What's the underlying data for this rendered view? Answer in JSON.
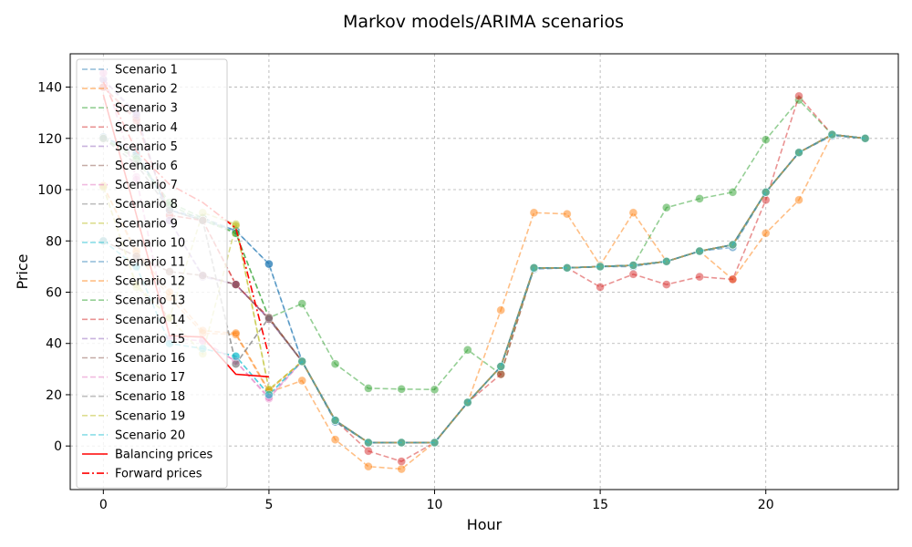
{
  "chart_data": {
    "type": "line",
    "title": "Markov models/ARIMA scenarios",
    "xlabel": "Hour",
    "ylabel": "Price",
    "xlim": [
      -1,
      24
    ],
    "ylim": [
      -17,
      153
    ],
    "xticks": [
      0,
      5,
      10,
      15,
      20
    ],
    "yticks": [
      0,
      20,
      40,
      60,
      80,
      100,
      120,
      140
    ],
    "grid": true,
    "legend_position": "upper-left",
    "series": [
      {
        "name": "Scenario 1",
        "color": "#1f77b4",
        "style": "dashed",
        "markers": true,
        "x": [
          0,
          1,
          2,
          3,
          4,
          5,
          6,
          7,
          8,
          9,
          10,
          11,
          12,
          13,
          14,
          15,
          16,
          17,
          18,
          19,
          20,
          21,
          22,
          23
        ],
        "y": [
          120.5,
          115,
          92,
          89,
          84,
          71,
          33,
          9.5,
          1.3,
          1.3,
          1.3,
          17,
          31,
          69,
          69.5,
          70,
          70,
          72,
          76,
          77.5,
          99,
          114.5,
          121,
          120
        ]
      },
      {
        "name": "Scenario 2",
        "color": "#ff7f0e",
        "style": "dashed",
        "markers": true,
        "x": [
          0,
          1,
          2,
          3,
          4,
          5,
          6,
          7,
          8,
          9,
          10,
          11,
          12,
          13,
          14,
          15,
          16,
          17,
          18,
          19,
          20,
          21,
          22,
          23
        ],
        "y": [
          101.5,
          75,
          58,
          44,
          43.5,
          21,
          25.5,
          2.5,
          -8,
          -9,
          1.3,
          17,
          53,
          91,
          90.5,
          70.5,
          91,
          72,
          76,
          65,
          83,
          96,
          121.5,
          120
        ]
      },
      {
        "name": "Scenario 3",
        "color": "#2ca02c",
        "style": "dashed",
        "markers": true,
        "x": [
          0,
          1,
          2,
          3,
          4,
          5,
          6,
          7,
          8,
          9,
          10,
          11,
          12,
          13,
          14,
          15,
          16,
          17,
          18,
          19,
          20,
          21,
          22,
          23
        ],
        "y": [
          120,
          113,
          95,
          89,
          83,
          50,
          55.5,
          32,
          22.5,
          22.2,
          22,
          37.5,
          28,
          69.5,
          69.5,
          70,
          70.5,
          93,
          96.5,
          99,
          119.5,
          135,
          121.5,
          120
        ]
      },
      {
        "name": "Scenario 4",
        "color": "#d62728",
        "style": "dashed",
        "markers": true,
        "x": [
          0,
          1,
          2,
          3,
          4,
          5,
          6,
          7,
          8,
          9,
          10,
          11,
          12,
          13,
          14,
          15,
          16,
          17,
          18,
          19,
          20,
          21,
          22,
          23
        ],
        "y": [
          140,
          128,
          90,
          88,
          63,
          50,
          33,
          10,
          -2,
          -6,
          1.3,
          17,
          28,
          69.5,
          69.5,
          62,
          67,
          63,
          66,
          65,
          96,
          136.5,
          121.5,
          120
        ]
      },
      {
        "name": "Scenario 5",
        "color": "#9467bd",
        "style": "dashed",
        "markers": true,
        "x": [
          0,
          1,
          2,
          3,
          4,
          5,
          6,
          7,
          8,
          9,
          10,
          11,
          12,
          13,
          14,
          15,
          16,
          17,
          18,
          19,
          20,
          21,
          22,
          23
        ],
        "y": [
          143,
          130,
          88,
          66,
          63,
          49.5,
          33,
          10,
          1.3,
          1.3,
          1.3,
          17,
          31,
          69.5,
          69.5,
          70,
          70.5,
          72,
          76,
          78.5,
          99,
          114.5,
          121.5,
          120
        ]
      },
      {
        "name": "Scenario 6",
        "color": "#8c564b",
        "style": "dashed",
        "markers": true,
        "x": [
          0,
          1,
          2,
          3,
          4,
          5,
          6,
          7,
          8,
          9,
          10,
          11,
          12,
          13,
          14,
          15,
          16,
          17,
          18,
          19,
          20,
          21,
          22,
          23
        ],
        "y": [
          80,
          74,
          68,
          66.5,
          63,
          49.5,
          33,
          10,
          1.3,
          1.3,
          1.3,
          17,
          31,
          69.5,
          69.5,
          70,
          70.5,
          72,
          76,
          78.5,
          99,
          114.5,
          121.5,
          120
        ]
      },
      {
        "name": "Scenario 7",
        "color": "#e377c2",
        "style": "dashed",
        "markers": true,
        "x": [
          0,
          1,
          2,
          3,
          4,
          5,
          6,
          7,
          8,
          9,
          10,
          11,
          12,
          13,
          14,
          15,
          16,
          17,
          18,
          19,
          20,
          21,
          22,
          23
        ],
        "y": [
          145.5,
          105,
          42,
          41,
          33,
          18.5,
          33,
          10,
          1.3,
          1.3,
          1.3,
          17,
          31,
          69.5,
          69.5,
          70,
          70.5,
          72,
          76,
          78.5,
          99,
          114.5,
          121.5,
          120
        ]
      },
      {
        "name": "Scenario 8",
        "color": "#7f7f7f",
        "style": "dashed",
        "markers": true,
        "x": [
          0,
          1,
          2,
          3,
          4,
          5,
          6,
          7,
          8,
          9,
          10,
          11,
          12,
          13,
          14,
          15,
          16,
          17,
          18,
          19,
          20,
          21,
          22,
          23
        ],
        "y": [
          120,
          110,
          92,
          88,
          32,
          50,
          33,
          10,
          1.3,
          1.3,
          1.3,
          17,
          31,
          69.5,
          69.5,
          70,
          70.5,
          72,
          76,
          78.5,
          99,
          114.5,
          121.5,
          120
        ]
      },
      {
        "name": "Scenario 9",
        "color": "#bcbd22",
        "style": "dashed",
        "markers": true,
        "x": [
          0,
          1,
          2,
          3,
          4,
          5,
          6,
          7,
          8,
          9,
          10,
          11,
          12,
          13,
          14,
          15,
          16,
          17,
          18,
          19,
          20,
          21,
          22,
          23
        ],
        "y": [
          101,
          62,
          50,
          91,
          86.5,
          22,
          33,
          10,
          1.3,
          1.3,
          1.3,
          17,
          31,
          69.5,
          69.5,
          70,
          70.5,
          72,
          76,
          78.5,
          99,
          114.5,
          121.5,
          120
        ]
      },
      {
        "name": "Scenario 10",
        "color": "#17becf",
        "style": "dashed",
        "markers": true,
        "x": [
          0,
          1,
          2,
          3,
          4,
          5,
          6,
          7,
          8,
          9,
          10,
          11,
          12,
          13,
          14,
          15,
          16,
          17,
          18,
          19,
          20,
          21,
          22,
          23
        ],
        "y": [
          80,
          70,
          40,
          38,
          35,
          20,
          33,
          10,
          1.3,
          1.3,
          1.3,
          17,
          31,
          69.5,
          69.5,
          70,
          70.5,
          72,
          76,
          78.5,
          99,
          114.5,
          121.5,
          120
        ]
      },
      {
        "name": "Scenario 11",
        "color": "#1f77b4",
        "style": "dashed",
        "markers": true,
        "x": [
          0,
          1,
          2,
          3,
          4,
          5,
          6,
          7,
          8,
          9,
          10,
          11,
          12,
          13,
          14,
          15,
          16,
          17,
          18,
          19,
          20,
          21,
          22,
          23
        ],
        "y": [
          120.5,
          114,
          92,
          88,
          84,
          71,
          33,
          9.5,
          1.3,
          1.3,
          1.3,
          17,
          31,
          69.5,
          69.5,
          70,
          70.5,
          72,
          76,
          78.5,
          99,
          114.5,
          121.5,
          120
        ]
      },
      {
        "name": "Scenario 12",
        "color": "#ff7f0e",
        "style": "dashed",
        "markers": true,
        "x": [
          0,
          1,
          2,
          3,
          4,
          5,
          6,
          7,
          8,
          9,
          10,
          11,
          12,
          13,
          14,
          15,
          16,
          17,
          18,
          19,
          20,
          21,
          22,
          23
        ],
        "y": [
          101.5,
          76,
          60,
          45,
          44,
          21.5,
          33,
          10,
          1.3,
          1.3,
          1.3,
          17,
          31,
          69.5,
          69.5,
          70,
          70.5,
          72,
          76,
          78.5,
          99,
          114.5,
          121.5,
          120
        ]
      },
      {
        "name": "Scenario 13",
        "color": "#2ca02c",
        "style": "dashed",
        "markers": true,
        "x": [
          0,
          1,
          2,
          3,
          4,
          5,
          6,
          7,
          8,
          9,
          10,
          11,
          12,
          13,
          14,
          15,
          16,
          17,
          18,
          19,
          20,
          21,
          22,
          23
        ],
        "y": [
          120,
          112,
          94,
          88,
          83,
          50,
          33,
          10,
          1.3,
          1.3,
          1.3,
          17,
          31,
          69.5,
          69.5,
          70,
          70.5,
          72,
          76,
          78.5,
          99,
          114.5,
          121.5,
          120
        ]
      },
      {
        "name": "Scenario 14",
        "color": "#d62728",
        "style": "dashed",
        "markers": true,
        "x": [
          0,
          1,
          2,
          3,
          4,
          5,
          6,
          7,
          8,
          9,
          10,
          11,
          12,
          13,
          14,
          15,
          16,
          17,
          18,
          19,
          20,
          21,
          22,
          23
        ],
        "y": [
          140,
          127,
          90,
          88,
          63,
          50,
          33,
          10,
          1.3,
          1.3,
          1.3,
          17,
          31,
          69.5,
          69.5,
          70,
          70.5,
          72,
          76,
          78.5,
          99,
          114.5,
          121.5,
          120
        ]
      },
      {
        "name": "Scenario 15",
        "color": "#9467bd",
        "style": "dashed",
        "markers": true,
        "x": [
          0,
          1,
          2,
          3,
          4,
          5,
          6,
          7,
          8,
          9,
          10,
          11,
          12,
          13,
          14,
          15,
          16,
          17,
          18,
          19,
          20,
          21,
          22,
          23
        ],
        "y": [
          143,
          129,
          88,
          66.5,
          63,
          49.5,
          33,
          10,
          1.3,
          1.3,
          1.3,
          17,
          31,
          69.5,
          69.5,
          70,
          70.5,
          72,
          76,
          78.5,
          99,
          114.5,
          121.5,
          120
        ]
      },
      {
        "name": "Scenario 16",
        "color": "#8c564b",
        "style": "dashed",
        "markers": true,
        "x": [
          0,
          1,
          2,
          3,
          4,
          5,
          6,
          7,
          8,
          9,
          10,
          11,
          12,
          13,
          14,
          15,
          16,
          17,
          18,
          19,
          20,
          21,
          22,
          23
        ],
        "y": [
          80,
          74,
          68,
          66.5,
          63,
          49.5,
          33,
          10,
          1.3,
          1.3,
          1.3,
          17,
          31,
          69.5,
          69.5,
          70,
          70.5,
          72,
          76,
          78.5,
          99,
          114.5,
          121.5,
          120
        ]
      },
      {
        "name": "Scenario 17",
        "color": "#e377c2",
        "style": "dashed",
        "markers": true,
        "x": [
          0,
          1,
          2,
          3,
          4,
          5,
          6,
          7,
          8,
          9,
          10,
          11,
          12,
          13,
          14,
          15,
          16,
          17,
          18,
          19,
          20,
          21,
          22,
          23
        ],
        "y": [
          145.5,
          104,
          42,
          41,
          33,
          19,
          33,
          10,
          1.3,
          1.3,
          1.3,
          17,
          31,
          69.5,
          69.5,
          70,
          70.5,
          72,
          76,
          78.5,
          99,
          114.5,
          121.5,
          120
        ]
      },
      {
        "name": "Scenario 18",
        "color": "#7f7f7f",
        "style": "dashed",
        "markers": true,
        "x": [
          0,
          1,
          2,
          3,
          4,
          5,
          6,
          7,
          8,
          9,
          10,
          11,
          12,
          13,
          14,
          15,
          16,
          17,
          18,
          19,
          20,
          21,
          22,
          23
        ],
        "y": [
          120,
          110,
          92,
          88,
          32,
          50,
          33,
          10,
          1.3,
          1.3,
          1.3,
          17,
          31,
          69.5,
          69.5,
          70,
          70.5,
          72,
          76,
          78.5,
          99,
          114.5,
          121.5,
          120
        ]
      },
      {
        "name": "Scenario 19",
        "color": "#bcbd22",
        "style": "dashed",
        "markers": true,
        "x": [
          0,
          1,
          2,
          3,
          4,
          5,
          6,
          7,
          8,
          9,
          10,
          11,
          12,
          13,
          14,
          15,
          16,
          17,
          18,
          19,
          20,
          21,
          22,
          23
        ],
        "y": [
          101,
          63,
          50,
          36,
          86,
          22,
          33,
          10,
          1.3,
          1.3,
          1.3,
          17,
          31,
          69.5,
          69.5,
          70,
          70.5,
          72,
          76,
          78.5,
          99,
          114.5,
          121.5,
          120
        ]
      },
      {
        "name": "Scenario 20",
        "color": "#17becf",
        "style": "dashed",
        "markers": true,
        "x": [
          0,
          1,
          2,
          3,
          4,
          5,
          6,
          7,
          8,
          9,
          10,
          11,
          12,
          13,
          14,
          15,
          16,
          17,
          18,
          19,
          20,
          21,
          22,
          23
        ],
        "y": [
          80,
          70,
          40,
          38,
          35,
          20,
          33,
          10,
          1.3,
          1.3,
          1.3,
          17,
          31,
          69.5,
          69.5,
          70,
          70.5,
          72,
          76,
          78.5,
          99,
          114.5,
          121.5,
          120
        ]
      },
      {
        "name": "Balancing prices",
        "color": "#ff0000",
        "style": "solid",
        "markers": false,
        "x": [
          0,
          1,
          2,
          3,
          4,
          5
        ],
        "y": [
          137,
          90,
          43,
          42.5,
          28,
          27
        ]
      },
      {
        "name": "Forward prices",
        "color": "#ff0000",
        "style": "dashdot",
        "markers": false,
        "x": [
          0,
          1,
          2,
          3,
          4,
          5
        ],
        "y": [
          142,
          115,
          102,
          95,
          85,
          35
        ]
      }
    ]
  }
}
